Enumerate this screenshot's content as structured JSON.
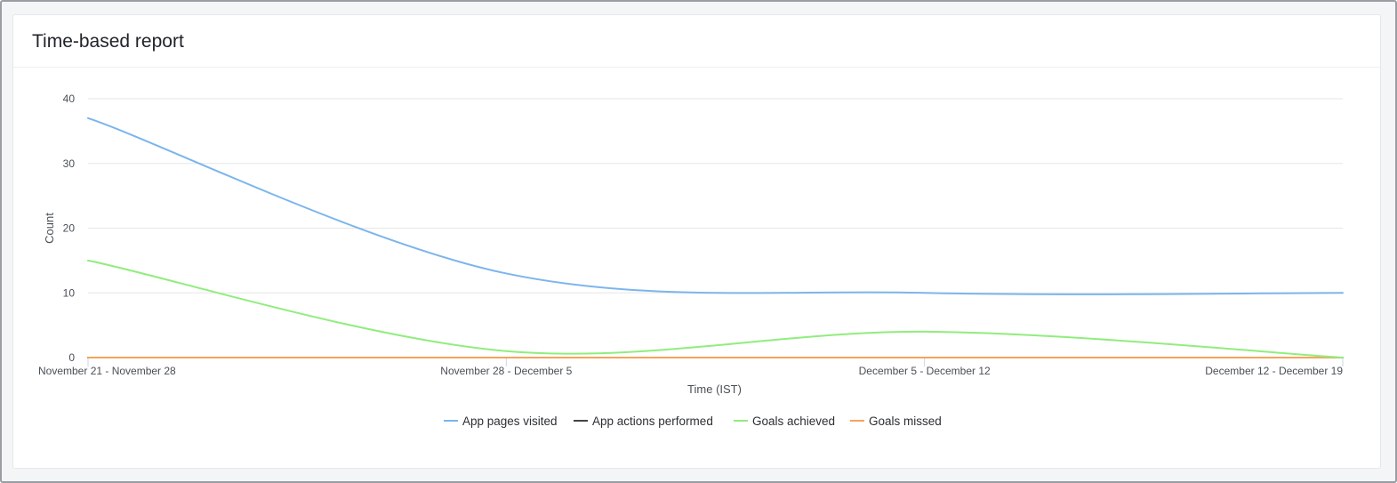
{
  "header": {
    "title": "Time-based report"
  },
  "chart_data": {
    "type": "line",
    "title": "",
    "xlabel": "Time (IST)",
    "ylabel": "Count",
    "categories": [
      "November 21 - November 28",
      "November 28 - December 5",
      "December 5 - December 12",
      "December 12 - December 19"
    ],
    "ylim": [
      0,
      40
    ],
    "yticks": [
      0,
      10,
      20,
      30,
      40
    ],
    "grid": true,
    "legend_position": "bottom",
    "series": [
      {
        "name": "App pages visited",
        "values": [
          37,
          13,
          10,
          10
        ],
        "color": "#7cb5ec"
      },
      {
        "name": "App actions performed",
        "values": [
          0,
          0,
          0,
          0
        ],
        "color": "#434348"
      },
      {
        "name": "Goals achieved",
        "values": [
          15,
          1,
          4,
          0
        ],
        "color": "#90ed7d"
      },
      {
        "name": "Goals missed",
        "values": [
          0,
          0,
          0,
          0
        ],
        "color": "#f7a35c"
      }
    ]
  }
}
